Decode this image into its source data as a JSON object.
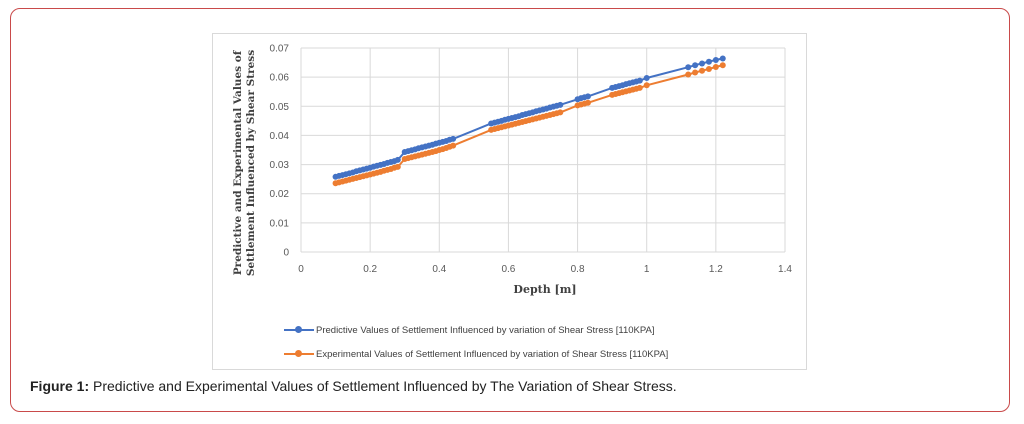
{
  "chart_data": {
    "type": "line",
    "title": "",
    "xlabel": "Depth  [m]",
    "ylabel_line1": "Predictive and Experimental Values of",
    "ylabel_line2": "Settlement Influenced  by Shear Stress",
    "xlim": [
      0,
      1.4
    ],
    "ylim": [
      0,
      0.07
    ],
    "xticks": [
      "0",
      "0.2",
      "0.4",
      "0.6",
      "0.8",
      "1",
      "1.2",
      "1.4"
    ],
    "yticks": [
      "0",
      "0.01",
      "0.02",
      "0.03",
      "0.04",
      "0.05",
      "0.06",
      "0.07"
    ],
    "grid": true,
    "legend_position": "bottom",
    "series": [
      {
        "name": "Predictive Values of Settlement Influenced by variation of Shear Stress [110KPA]",
        "color": "#4472c4",
        "x": [
          0.1,
          0.11,
          0.12,
          0.13,
          0.14,
          0.15,
          0.16,
          0.17,
          0.18,
          0.19,
          0.2,
          0.21,
          0.22,
          0.23,
          0.24,
          0.25,
          0.26,
          0.27,
          0.28,
          0.3,
          0.31,
          0.32,
          0.33,
          0.34,
          0.35,
          0.36,
          0.37,
          0.38,
          0.39,
          0.4,
          0.41,
          0.42,
          0.43,
          0.44,
          0.55,
          0.56,
          0.57,
          0.58,
          0.59,
          0.6,
          0.61,
          0.62,
          0.63,
          0.64,
          0.65,
          0.66,
          0.67,
          0.68,
          0.69,
          0.7,
          0.71,
          0.72,
          0.73,
          0.74,
          0.75,
          0.8,
          0.81,
          0.82,
          0.83,
          0.9,
          0.91,
          0.92,
          0.93,
          0.94,
          0.95,
          0.96,
          0.97,
          0.98,
          1.0,
          1.12,
          1.14,
          1.16,
          1.18,
          1.2,
          1.22
        ],
        "y": [
          0.0258,
          0.0261,
          0.0264,
          0.0267,
          0.027,
          0.0273,
          0.0277,
          0.028,
          0.0283,
          0.0286,
          0.0289,
          0.0293,
          0.0296,
          0.0299,
          0.0302,
          0.0306,
          0.0309,
          0.0312,
          0.0316,
          0.0343,
          0.0346,
          0.0349,
          0.0352,
          0.0356,
          0.0359,
          0.0362,
          0.0365,
          0.0368,
          0.0372,
          0.0375,
          0.0378,
          0.0381,
          0.0385,
          0.0388,
          0.0441,
          0.0444,
          0.0447,
          0.045,
          0.0454,
          0.0457,
          0.046,
          0.0463,
          0.0466,
          0.047,
          0.0473,
          0.0476,
          0.0479,
          0.0483,
          0.0486,
          0.0489,
          0.0492,
          0.0496,
          0.0499,
          0.0502,
          0.0505,
          0.0524,
          0.0528,
          0.0531,
          0.0534,
          0.0563,
          0.0566,
          0.0569,
          0.0572,
          0.0576,
          0.0579,
          0.0582,
          0.0585,
          0.0588,
          0.0597,
          0.0634,
          0.0641,
          0.0647,
          0.0653,
          0.0659,
          0.0664
        ]
      },
      {
        "name": "Experimental  Values of Settlement Influenced by variation of Shear Stress [110KPA]",
        "color": "#ed7d31",
        "x": [
          0.1,
          0.11,
          0.12,
          0.13,
          0.14,
          0.15,
          0.16,
          0.17,
          0.18,
          0.19,
          0.2,
          0.21,
          0.22,
          0.23,
          0.24,
          0.25,
          0.26,
          0.27,
          0.28,
          0.3,
          0.31,
          0.32,
          0.33,
          0.34,
          0.35,
          0.36,
          0.37,
          0.38,
          0.39,
          0.4,
          0.41,
          0.42,
          0.43,
          0.44,
          0.55,
          0.56,
          0.57,
          0.58,
          0.59,
          0.6,
          0.61,
          0.62,
          0.63,
          0.64,
          0.65,
          0.66,
          0.67,
          0.68,
          0.69,
          0.7,
          0.71,
          0.72,
          0.73,
          0.74,
          0.75,
          0.8,
          0.81,
          0.82,
          0.83,
          0.9,
          0.91,
          0.92,
          0.93,
          0.94,
          0.95,
          0.96,
          0.97,
          0.98,
          1.0,
          1.12,
          1.14,
          1.16,
          1.18,
          1.2,
          1.22
        ],
        "y": [
          0.0236,
          0.0239,
          0.0242,
          0.0245,
          0.0248,
          0.0251,
          0.0254,
          0.0257,
          0.026,
          0.0263,
          0.0266,
          0.0269,
          0.0272,
          0.0275,
          0.0279,
          0.0282,
          0.0285,
          0.0289,
          0.0292,
          0.0319,
          0.0322,
          0.0325,
          0.0328,
          0.0331,
          0.0334,
          0.0337,
          0.034,
          0.0343,
          0.0346,
          0.035,
          0.0353,
          0.0357,
          0.0361,
          0.0365,
          0.0419,
          0.0422,
          0.0425,
          0.0428,
          0.0431,
          0.0434,
          0.0437,
          0.044,
          0.0443,
          0.0446,
          0.0449,
          0.0452,
          0.0455,
          0.0458,
          0.0461,
          0.0464,
          0.0467,
          0.047,
          0.0473,
          0.0476,
          0.0479,
          0.0503,
          0.0506,
          0.0509,
          0.0512,
          0.0539,
          0.0542,
          0.0545,
          0.0548,
          0.0551,
          0.0554,
          0.0557,
          0.056,
          0.0563,
          0.0572,
          0.0609,
          0.0616,
          0.0622,
          0.0628,
          0.0635,
          0.0641
        ]
      }
    ]
  },
  "caption": {
    "label": "Figure 1:",
    "text": " Predictive and Experimental Values of Settlement Influenced by The Variation of Shear Stress."
  }
}
